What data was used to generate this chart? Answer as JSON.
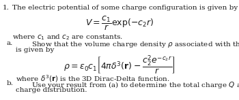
{
  "background_color": "#ffffff",
  "text_color": "#1a1a1a",
  "item_number": "1.",
  "intro_text": "The electric potential of some charge configuration is given by the expression",
  "eq_V": "$V = \\dfrac{c_1}{r}\\exp(-c_2 r)$",
  "where_text": "where $c_1$ and $c_2$ are constants.",
  "part_a_label": "a.",
  "part_a_text": "Show that the volume charge density $\\rho$ associated with this electric potential",
  "part_a_text2": "is given by",
  "eq_rho": "$\\rho = \\epsilon_0 c_1 \\left[4\\pi\\delta^3(\\mathbf{r}) - \\dfrac{c_2^2 e^{-c_2 r}}{r}\\right]$",
  "part_a_footnote": "where $\\delta^3(\\mathbf{r})$ is the 3D Dirac-Delta function.",
  "part_b_label": "b.",
  "part_b_text": "Use your result from (a) to determine the total charge $Q$ associated with the",
  "part_b_text2": "charge distribution.",
  "fontsize": 7.5,
  "eq_fontsize": 8.0,
  "fig_width": 3.5,
  "fig_height": 1.47,
  "dpi": 100
}
